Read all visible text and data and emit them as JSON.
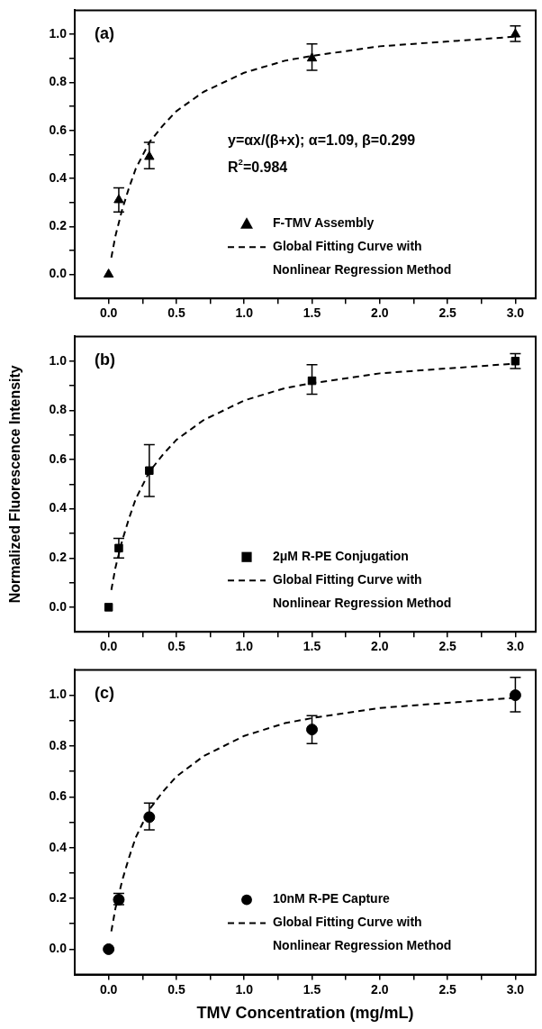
{
  "chart_data": [
    {
      "type": "scatter",
      "annotations": [
        "(a)",
        "y=αx/(β+x); α=1.09, β=0.299",
        "R$^{2}$=0.984"
      ],
      "legend": "bottom right",
      "grid": false,
      "xlim": [
        -0.25,
        3.15
      ],
      "xticks": [
        {
          "value": 0,
          "label": "0.0"
        },
        {
          "value": 0.25,
          "label": null
        },
        {
          "value": 0.5,
          "label": "0.5"
        },
        {
          "value": 0.75,
          "label": null
        },
        {
          "value": 1,
          "label": "1.0"
        },
        {
          "value": 1.25,
          "label": null
        },
        {
          "value": 1.5,
          "label": "1.5"
        },
        {
          "value": 1.75,
          "label": null
        },
        {
          "value": 2,
          "label": "2.0"
        },
        {
          "value": 2.25,
          "label": null
        },
        {
          "value": 2.5,
          "label": "2.5"
        },
        {
          "value": 2.75,
          "label": null
        },
        {
          "value": 3,
          "label": "3.0"
        }
      ],
      "ylim": [
        -0.1,
        1.1
      ],
      "yticks": [
        {
          "value": 0,
          "label": "0.0"
        },
        {
          "value": 0.1,
          "label": null
        },
        {
          "value": 0.2,
          "label": "0.2"
        },
        {
          "value": 0.3,
          "label": null
        },
        {
          "value": 0.4,
          "label": "0.4"
        },
        {
          "value": 0.5,
          "label": null
        },
        {
          "value": 0.6,
          "label": "0.6"
        },
        {
          "value": 0.7,
          "label": null
        },
        {
          "value": 0.8,
          "label": "0.8"
        },
        {
          "value": 0.9,
          "label": null
        },
        {
          "value": 1,
          "label": "1.0"
        }
      ],
      "series": [
        {
          "name": "F-TMV Assembly",
          "color": "#000000",
          "type": "scatter",
          "marker": "triangle",
          "x": [
            0,
            0.075,
            0.3,
            1.5,
            3.0
          ],
          "values": [
            0,
            0.31,
            0.49,
            0.9,
            1.0
          ],
          "errors": [
            null,
            [
              0.26,
              0.36
            ],
            [
              0.44,
              0.55
            ],
            [
              0.85,
              0.96
            ],
            [
              0.97,
              1.035
            ]
          ]
        },
        {
          "name": "Global Fitting Curve with Nonlinear Regression Method",
          "color": "#000000",
          "type": "line",
          "marker": "none",
          "line_style": "dashed",
          "x": [
            0.02,
            0.05,
            0.1,
            0.15,
            0.2,
            0.3,
            0.4,
            0.5,
            0.7,
            1.0,
            1.3,
            1.5,
            2.0,
            2.5,
            3.0
          ],
          "values": [
            0.07,
            0.16,
            0.27,
            0.36,
            0.44,
            0.55,
            0.62,
            0.68,
            0.76,
            0.84,
            0.89,
            0.91,
            0.95,
            0.97,
            0.99
          ]
        }
      ]
    },
    {
      "type": "scatter",
      "annotations": [
        "(b)"
      ],
      "legend": "bottom right",
      "grid": false,
      "ylabel": "Normalized Fluorescence Intensity",
      "xlim": [
        -0.25,
        3.15
      ],
      "xticks": [
        {
          "value": 0,
          "label": "0.0"
        },
        {
          "value": 0.25,
          "label": null
        },
        {
          "value": 0.5,
          "label": "0.5"
        },
        {
          "value": 0.75,
          "label": null
        },
        {
          "value": 1,
          "label": "1.0"
        },
        {
          "value": 1.25,
          "label": null
        },
        {
          "value": 1.5,
          "label": "1.5"
        },
        {
          "value": 1.75,
          "label": null
        },
        {
          "value": 2,
          "label": "2.0"
        },
        {
          "value": 2.25,
          "label": null
        },
        {
          "value": 2.5,
          "label": "2.5"
        },
        {
          "value": 2.75,
          "label": null
        },
        {
          "value": 3,
          "label": "3.0"
        }
      ],
      "ylim": [
        -0.1,
        1.1
      ],
      "yticks": [
        {
          "value": 0,
          "label": "0.0"
        },
        {
          "value": 0.1,
          "label": null
        },
        {
          "value": 0.2,
          "label": "0.2"
        },
        {
          "value": 0.3,
          "label": null
        },
        {
          "value": 0.4,
          "label": "0.4"
        },
        {
          "value": 0.5,
          "label": null
        },
        {
          "value": 0.6,
          "label": "0.6"
        },
        {
          "value": 0.7,
          "label": null
        },
        {
          "value": 0.8,
          "label": "0.8"
        },
        {
          "value": 0.9,
          "label": null
        },
        {
          "value": 1,
          "label": "1.0"
        }
      ],
      "series": [
        {
          "name": "2μM R-PE Conjugation",
          "color": "#000000",
          "type": "scatter",
          "marker": "square",
          "x": [
            0,
            0.075,
            0.3,
            1.5,
            3.0
          ],
          "values": [
            0,
            0.24,
            0.555,
            0.92,
            1.0
          ],
          "errors": [
            null,
            [
              0.2,
              0.28
            ],
            [
              0.45,
              0.66
            ],
            [
              0.865,
              0.985
            ],
            [
              0.97,
              1.03
            ]
          ]
        },
        {
          "name": "Global Fitting Curve with Nonlinear Regression Method",
          "color": "#000000",
          "type": "line",
          "marker": "none",
          "line_style": "dashed",
          "x": [
            0.02,
            0.05,
            0.1,
            0.15,
            0.2,
            0.3,
            0.4,
            0.5,
            0.7,
            1.0,
            1.3,
            1.5,
            2.0,
            2.5,
            3.0
          ],
          "values": [
            0.07,
            0.16,
            0.27,
            0.36,
            0.44,
            0.55,
            0.62,
            0.68,
            0.76,
            0.84,
            0.89,
            0.91,
            0.95,
            0.97,
            0.99
          ]
        }
      ]
    },
    {
      "type": "scatter",
      "annotations": [
        "(c)"
      ],
      "legend": "bottom right",
      "grid": false,
      "xlabel": "TMV Concentration (mg/mL)",
      "xlim": [
        -0.25,
        3.15
      ],
      "xticks": [
        {
          "value": 0,
          "label": "0.0"
        },
        {
          "value": 0.25,
          "label": null
        },
        {
          "value": 0.5,
          "label": "0.5"
        },
        {
          "value": 0.75,
          "label": null
        },
        {
          "value": 1,
          "label": "1.0"
        },
        {
          "value": 1.25,
          "label": null
        },
        {
          "value": 1.5,
          "label": "1.5"
        },
        {
          "value": 1.75,
          "label": null
        },
        {
          "value": 2,
          "label": "2.0"
        },
        {
          "value": 2.25,
          "label": null
        },
        {
          "value": 2.5,
          "label": "2.5"
        },
        {
          "value": 2.75,
          "label": null
        },
        {
          "value": 3,
          "label": "3.0"
        }
      ],
      "ylim": [
        -0.1,
        1.1
      ],
      "yticks": [
        {
          "value": 0,
          "label": "0.0"
        },
        {
          "value": 0.1,
          "label": null
        },
        {
          "value": 0.2,
          "label": "0.2"
        },
        {
          "value": 0.3,
          "label": null
        },
        {
          "value": 0.4,
          "label": "0.4"
        },
        {
          "value": 0.5,
          "label": null
        },
        {
          "value": 0.6,
          "label": "0.6"
        },
        {
          "value": 0.7,
          "label": null
        },
        {
          "value": 0.8,
          "label": "0.8"
        },
        {
          "value": 0.9,
          "label": null
        },
        {
          "value": 1,
          "label": "1.0"
        }
      ],
      "series": [
        {
          "name": "10nM R-PE Capture",
          "color": "#000000",
          "type": "scatter",
          "marker": "circle",
          "x": [
            0,
            0.075,
            0.3,
            1.5,
            3.0
          ],
          "values": [
            0,
            0.195,
            0.52,
            0.865,
            1.0
          ],
          "errors": [
            null,
            [
              0.175,
              0.22
            ],
            [
              0.47,
              0.575
            ],
            [
              0.81,
              0.92
            ],
            [
              0.935,
              1.07
            ]
          ]
        },
        {
          "name": "Global Fitting Curve with Nonlinear Regression Method",
          "color": "#000000",
          "type": "line",
          "marker": "none",
          "line_style": "dashed",
          "x": [
            0.02,
            0.05,
            0.1,
            0.15,
            0.2,
            0.3,
            0.4,
            0.5,
            0.7,
            1.0,
            1.3,
            1.5,
            2.0,
            2.5,
            3.0
          ],
          "values": [
            0.07,
            0.16,
            0.27,
            0.36,
            0.44,
            0.55,
            0.62,
            0.68,
            0.76,
            0.84,
            0.89,
            0.91,
            0.95,
            0.97,
            0.99
          ]
        }
      ]
    }
  ]
}
